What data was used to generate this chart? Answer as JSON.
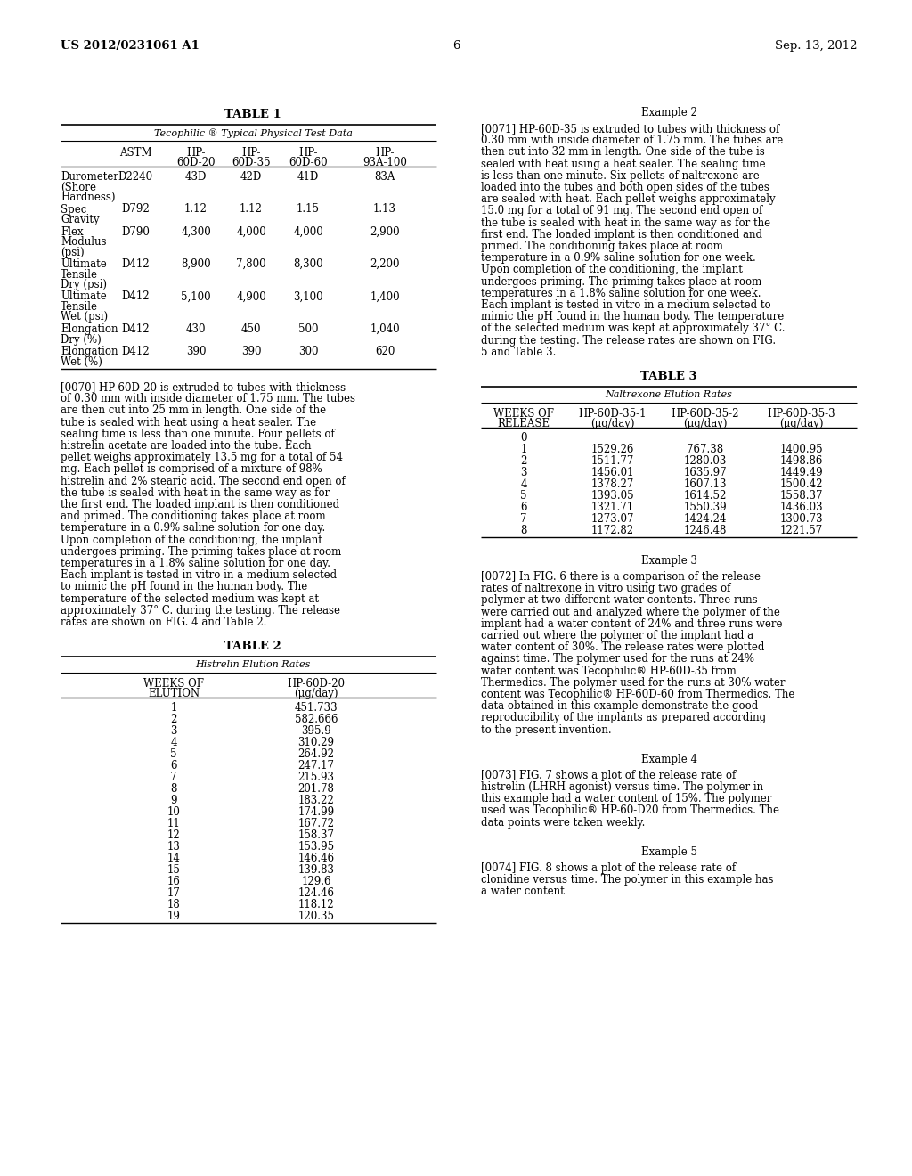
{
  "page_header_left": "US 2012/0231061 A1",
  "page_header_right": "Sep. 13, 2012",
  "page_number": "6",
  "background_color": "#ffffff",
  "text_color": "#000000",
  "table1_title": "TABLE 1",
  "table1_subtitle": "Tecophilic ® Typical Physical Test Data",
  "table1_rows": [
    [
      "Durometer\n(Shore\nHardness)",
      "D2240",
      "43D",
      "42D",
      "41D",
      "83A"
    ],
    [
      "Spec\nGravity",
      "D792",
      "1.12",
      "1.12",
      "1.15",
      "1.13"
    ],
    [
      "Flex\nModulus\n(psi)",
      "D790",
      "4,300",
      "4,000",
      "4,000",
      "2,900"
    ],
    [
      "Ultimate\nTensile\nDry (psi)",
      "D412",
      "8,900",
      "7,800",
      "8,300",
      "2,200"
    ],
    [
      "Ultimate\nTensile\nWet (psi)",
      "D412",
      "5,100",
      "4,900",
      "3,100",
      "1,400"
    ],
    [
      "Elongation\nDry (%)",
      "D412",
      "430",
      "450",
      "500",
      "1,040"
    ],
    [
      "Elongation\nWet (%)",
      "D412",
      "390",
      "390",
      "300",
      "620"
    ]
  ],
  "para_0070_label": "[0070]",
  "para_0070_text": "HP-60D-20 is extruded to tubes with thickness of 0.30 mm with inside diameter of 1.75 mm. The tubes are then cut into 25 mm in length. One side of the tube is sealed with heat using a heat sealer. The sealing time is less than one minute. Four pellets of histrelin acetate are loaded into the tube. Each pellet weighs approximately 13.5 mg for a total of 54 mg. Each pellet is comprised of a mixture of 98% histrelin and 2% stearic acid. The second end open of the tube is sealed with heat in the same way as for the first end. The loaded implant is then conditioned and primed. The conditioning takes place at room temperature in a 0.9% saline solution for one day. Upon completion of the conditioning, the implant undergoes priming. The priming takes place at room temperatures in a 1.8% saline solution for one day. Each implant is tested in vitro in a medium selected to mimic the pH found in the human body. The temperature of the selected medium was kept at approximately 37° C. during the testing. The release rates are shown on FIG. 4 and Table 2.",
  "table2_title": "TABLE 2",
  "table2_subtitle": "Histrelin Elution Rates",
  "table2_col1_header": "WEEKS OF\nELUTION",
  "table2_col2_header": "HP-60D-20\n(μg/day)",
  "table2_rows": [
    [
      "1",
      "451.733"
    ],
    [
      "2",
      "582.666"
    ],
    [
      "3",
      "395.9"
    ],
    [
      "4",
      "310.29"
    ],
    [
      "5",
      "264.92"
    ],
    [
      "6",
      "247.17"
    ],
    [
      "7",
      "215.93"
    ],
    [
      "8",
      "201.78"
    ],
    [
      "9",
      "183.22"
    ],
    [
      "10",
      "174.99"
    ],
    [
      "11",
      "167.72"
    ],
    [
      "12",
      "158.37"
    ],
    [
      "13",
      "153.95"
    ],
    [
      "14",
      "146.46"
    ],
    [
      "15",
      "139.83"
    ],
    [
      "16",
      "129.6"
    ],
    [
      "17",
      "124.46"
    ],
    [
      "18",
      "118.12"
    ],
    [
      "19",
      "120.35"
    ]
  ],
  "example2_header": "Example 2",
  "para_0071_label": "[0071]",
  "para_0071_text": "HP-60D-35 is extruded to tubes with thickness of 0.30 mm with inside diameter of 1.75 mm. The tubes are then cut into 32 mm in length. One side of the tube is sealed with heat using a heat sealer. The sealing time is less than one minute. Six pellets of naltrexone are loaded into the tubes and both open sides of the tubes are sealed with heat. Each pellet weighs approximately 15.0 mg for a total of 91 mg. The second end open of the tube is sealed with heat in the same way as for the first end. The loaded implant is then conditioned and primed. The conditioning takes place at room temperature in a 0.9% saline solution for one week. Upon completion of the conditioning, the implant undergoes priming. The priming takes place at room temperatures in a 1.8% saline solution for one week. Each implant is tested in vitro in a medium selected to mimic the pH found in the human body. The temperature of the selected medium was kept at approximately 37° C. during the testing. The release rates are shown on FIG. 5 and Table 3.",
  "table3_title": "TABLE 3",
  "table3_subtitle": "Naltrexone Elution Rates",
  "table3_col1_header": "WEEKS OF\nRELEASE",
  "table3_col2_header": "HP-60D-35-1\n(μg/day)",
  "table3_col3_header": "HP-60D-35-2\n(μg/day)",
  "table3_col4_header": "HP-60D-35-3\n(μg/day)",
  "table3_rows": [
    [
      "0",
      "",
      "",
      ""
    ],
    [
      "1",
      "1529.26",
      "767.38",
      "1400.95"
    ],
    [
      "2",
      "1511.77",
      "1280.03",
      "1498.86"
    ],
    [
      "3",
      "1456.01",
      "1635.97",
      "1449.49"
    ],
    [
      "4",
      "1378.27",
      "1607.13",
      "1500.42"
    ],
    [
      "5",
      "1393.05",
      "1614.52",
      "1558.37"
    ],
    [
      "6",
      "1321.71",
      "1550.39",
      "1436.03"
    ],
    [
      "7",
      "1273.07",
      "1424.24",
      "1300.73"
    ],
    [
      "8",
      "1172.82",
      "1246.48",
      "1221.57"
    ]
  ],
  "example3_header": "Example 3",
  "para_0072_label": "[0072]",
  "para_0072_text": "In FIG. 6 there is a comparison of the release rates of naltrexone in vitro using two grades of polymer at two different water contents. Three runs were carried out and analyzed where the polymer of the implant had a water content of 24% and three runs were carried out where the polymer of the implant had a water content of 30%. The release rates were plotted against time. The polymer used for the runs at 24% water content was Tecophilic® HP-60D-35 from Thermedics. The polymer used for the runs at 30% water content was Tecophilic® HP-60D-60 from Thermedics. The data obtained in this example demonstrate the good reproducibility of the implants as prepared according to the present invention.",
  "example4_header": "Example 4",
  "para_0073_label": "[0073]",
  "para_0073_text": "FIG. 7 shows a plot of the release rate of histrelin (LHRH agonist) versus time. The polymer in this example had a water content of 15%. The polymer used was Tecophilic® HP-60-D20 from Thermedics. The data points were taken weekly.",
  "example5_header": "Example 5",
  "para_0074_label": "[0074]",
  "para_0074_text": "FIG. 8 shows a plot of the release rate of clonidine versus time. The polymer in this example has a water content"
}
